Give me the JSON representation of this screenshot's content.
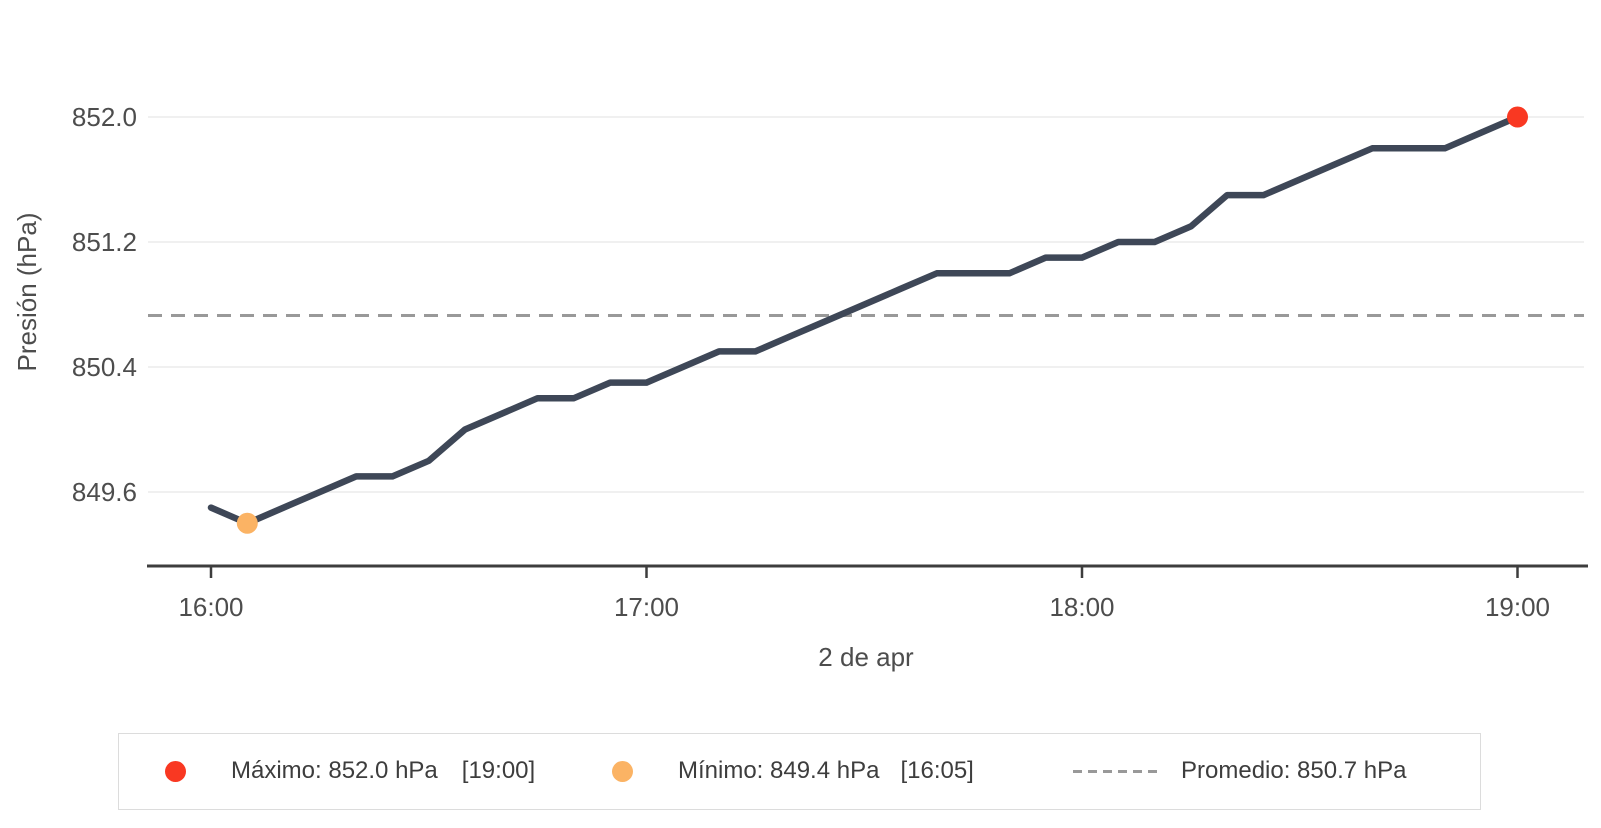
{
  "chart_data": {
    "type": "line",
    "title": "",
    "xlabel": "2 de apr",
    "ylabel": "Presión (hPa)",
    "x_range": {
      "start": "16:00",
      "end": "19:00"
    },
    "x_tick_labels": [
      "16:00",
      "17:00",
      "18:00",
      "19:00"
    ],
    "y_ticks": [
      852.0,
      851.2,
      850.4,
      849.6
    ],
    "y_tick_labels": [
      "852.0",
      "851.2",
      "850.4",
      "849.6"
    ],
    "ylim": [
      849.1264,
      852.2368
    ],
    "grid": "horizontal",
    "legend_position": "bottom",
    "series": [
      {
        "name": "Presión",
        "color": "#3e4757",
        "times": [
          "16:00",
          "16:05",
          "16:10",
          "16:15",
          "16:20",
          "16:25",
          "16:30",
          "16:35",
          "16:40",
          "16:45",
          "16:50",
          "16:55",
          "17:00",
          "17:05",
          "17:10",
          "17:15",
          "17:20",
          "17:25",
          "17:30",
          "17:35",
          "17:40",
          "17:45",
          "17:50",
          "17:55",
          "18:00",
          "18:05",
          "18:10",
          "18:15",
          "18:20",
          "18:25",
          "18:30",
          "18:35",
          "18:40",
          "18:45",
          "18:50",
          "18:55",
          "19:00"
        ],
        "values": [
          849.5,
          849.4,
          849.5,
          849.6,
          849.7,
          849.7,
          849.8,
          850.0,
          850.1,
          850.2,
          850.2,
          850.3,
          850.3,
          850.4,
          850.5,
          850.5,
          850.6,
          850.7,
          850.8,
          850.9,
          851.0,
          851.0,
          851.0,
          851.1,
          851.1,
          851.2,
          851.2,
          851.3,
          851.5,
          851.5,
          851.6,
          851.7,
          851.8,
          851.8,
          851.8,
          851.9,
          852.0
        ]
      }
    ],
    "annotations": {
      "max": {
        "value": 852.0,
        "time": "19:00",
        "color": "#f93822"
      },
      "min": {
        "value": 849.4,
        "time": "16:05",
        "color": "#fbb364"
      },
      "average": {
        "value": 850.73,
        "color": "#999999"
      }
    }
  },
  "legend": {
    "items": [
      {
        "marker": "dot",
        "color": "#f93822",
        "label": "Máximo: 852.0 hPa",
        "time": "[19:00]"
      },
      {
        "marker": "dot",
        "color": "#fbb364",
        "label": "Mínimo: 849.4 hPa",
        "time": "[16:05]"
      },
      {
        "marker": "dash",
        "color": "#999999",
        "label": "Promedio: 850.7 hPa",
        "time": ""
      }
    ]
  },
  "colors": {
    "line": "#3e4757",
    "grid": "#ececec",
    "axis": "#3d3d3d",
    "tick_text": "#4d4d4d",
    "legend_text": "#3d3d3d",
    "average_dash": "#999999",
    "max_dot": "#f93822",
    "min_dot": "#fbb364",
    "legend_border": "#dcdcdc"
  }
}
